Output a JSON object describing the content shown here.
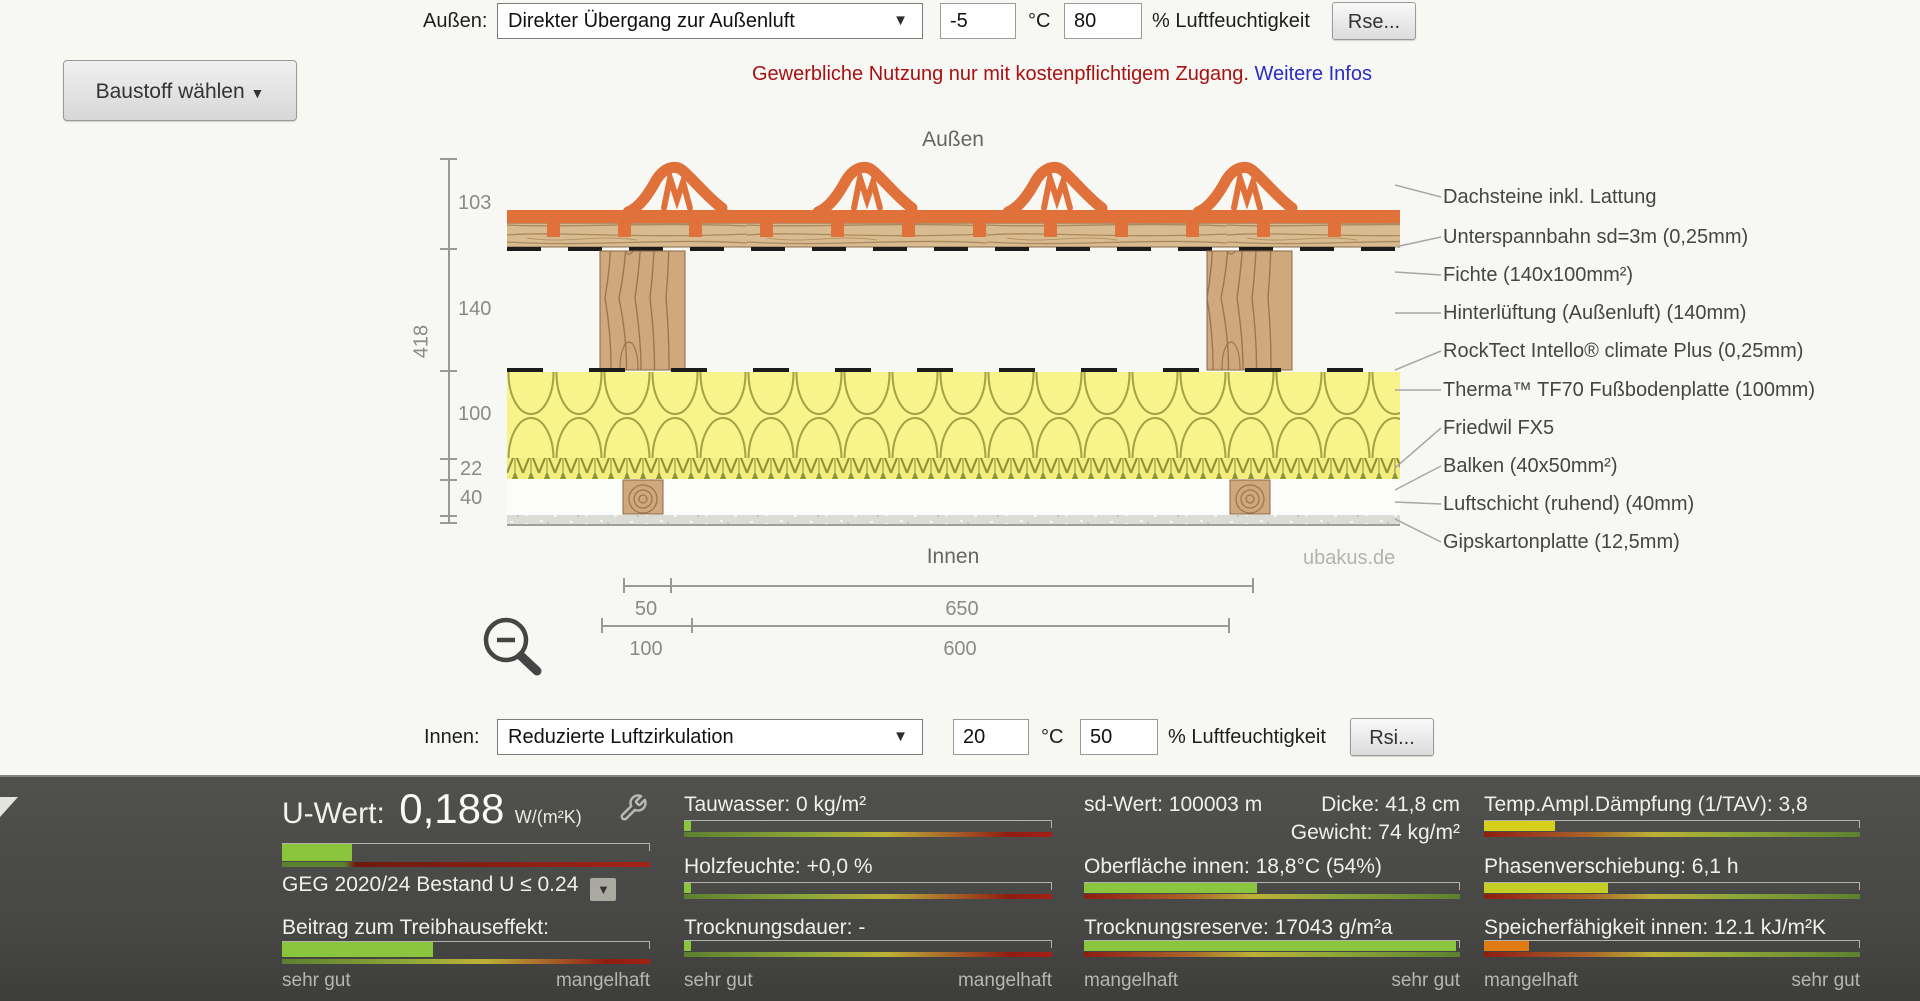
{
  "icons": {
    "caret_down": "▼"
  },
  "outside": {
    "label": "Außen:",
    "transfer": "Direkter Übergang zur Außenluft",
    "temp": "-5",
    "temp_unit": "°C",
    "humidity": "80",
    "humidity_unit": "% Luftfeuchtigkeit",
    "surface_button": "Rse..."
  },
  "inside": {
    "label": "Innen:",
    "transfer": "Reduzierte Luftzirkulation",
    "temp": "20",
    "temp_unit": "°C",
    "humidity": "50",
    "humidity_unit": "% Luftfeuchtigkeit",
    "surface_button": "Rsi..."
  },
  "toolbar": {
    "material_button": "Baustoff wählen"
  },
  "notice": {
    "text": "Gewerbliche Nutzung nur mit kostenpflichtigem Zugang.",
    "link": "Weitere Infos"
  },
  "diagram": {
    "outside_caption": "Außen",
    "inside_caption": "Innen",
    "watermark": "ubakus.de",
    "v_total": "418",
    "v_segments": [
      "103",
      "140",
      "100",
      "22",
      "40"
    ],
    "h_dims_row1": [
      "50",
      "650"
    ],
    "h_dims_row2": [
      "100",
      "600"
    ],
    "layers": [
      "Dachsteine inkl. Lattung",
      "Unterspannbahn sd=3m (0,25mm)",
      "Fichte (140x100mm²)",
      "Hinterlüftung (Außenluft) (140mm)",
      "RockTect Intello® climate Plus (0,25mm)",
      "Therma™ TF70 Fußbodenplatte (100mm)",
      "Friedwil FX5",
      "Balken (40x50mm²)",
      "Luftschicht (ruhend) (40mm)",
      "Gipskartonplatte (12,5mm)"
    ]
  },
  "results": {
    "u": {
      "label": "U-Wert:",
      "value": "0,188",
      "unit": "W/(m²K)",
      "meter": {
        "fill": 19,
        "color": "#8bc53e"
      },
      "geg": "GEG 2020/24 Bestand U ≤ 0.24",
      "ghg_label": "Beitrag zum Treibhauseffekt:",
      "ghg_meter": {
        "fill": 41,
        "color": "#8bc53e"
      },
      "scale_left": "sehr gut",
      "scale_right": "mangelhaft"
    },
    "moisture": {
      "rows": [
        {
          "label": "Tauwasser: 0 kg/m²",
          "meter": {
            "fill": 2,
            "color": "#8bc53e"
          }
        },
        {
          "label": "Holzfeuchte: +0,0 %",
          "meter": {
            "fill": 2,
            "color": "#8bc53e"
          }
        },
        {
          "label": "Trocknungsdauer: -",
          "meter": {
            "fill": 2,
            "color": "#8bc53e"
          }
        }
      ],
      "scale_left": "sehr gut",
      "scale_right": "mangelhaft"
    },
    "layer_info": {
      "sd": "sd-Wert: 100003 m",
      "thickness": "Dicke: 41,8 cm",
      "weight": "Gewicht: 74 kg/m²",
      "rows": [
        {
          "label": "Oberfläche innen: 18,8°C (54%)",
          "meter": {
            "fill": 46,
            "color": "#8bc53e"
          }
        },
        {
          "label": "Trocknungsreserve: 17043 g/m²a",
          "meter": {
            "fill": 99,
            "color": "#8bc53e"
          }
        }
      ],
      "scale_left": "mangelhaft",
      "scale_right": "sehr gut"
    },
    "heat": {
      "rows": [
        {
          "label": "Temp.Ampl.Dämpfung (1/TAV): 3,8",
          "meter": {
            "fill": 19,
            "color": "#d7cf1e"
          }
        },
        {
          "label": "Phasenverschiebung: 6,1 h",
          "meter": {
            "fill": 33,
            "color": "#c3cf27"
          }
        },
        {
          "label": "Speicherfähigkeit innen: 12.1 kJ/m²K",
          "meter": {
            "fill": 12,
            "color": "#e17a15"
          }
        }
      ],
      "scale_left": "mangelhaft",
      "scale_right": "sehr gut"
    }
  }
}
